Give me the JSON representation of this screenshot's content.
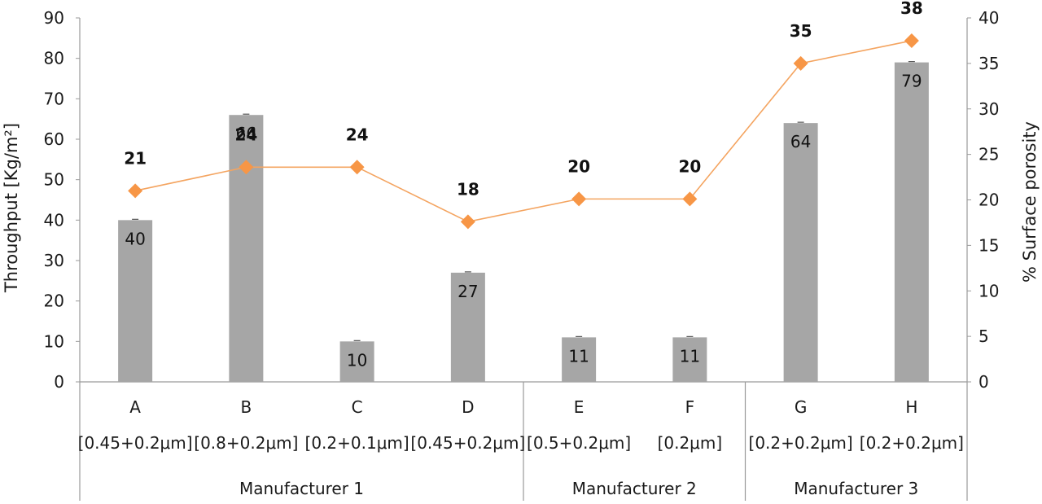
{
  "chart_data": {
    "type": "bar",
    "categories": [
      "A",
      "B",
      "C",
      "D",
      "E",
      "F",
      "G",
      "H"
    ],
    "subcategories": [
      "[0.45+0.2μm]",
      "[0.8+0.2μm]",
      "[0.2+0.1μm]",
      "[0.45+0.2μm]",
      "[0.5+0.2μm]",
      "[0.2μm]",
      "[0.2+0.2μm]",
      "[0.2+0.2μm]"
    ],
    "groups": [
      {
        "name": "Manufacturer 1",
        "categories": [
          "A",
          "B",
          "C",
          "D"
        ]
      },
      {
        "name": "Manufacturer 2",
        "categories": [
          "E",
          "F"
        ]
      },
      {
        "name": "Manufacturer 3",
        "categories": [
          "G",
          "H"
        ]
      }
    ],
    "series": [
      {
        "type": "bar",
        "axis": "left",
        "values": [
          40,
          66,
          10,
          27,
          11,
          11,
          64,
          79
        ],
        "color": "#a6a6a6",
        "labels": [
          "40",
          "66",
          "10",
          "27",
          "11",
          "11",
          "64",
          "79"
        ]
      },
      {
        "type": "line",
        "axis": "right",
        "values": [
          21,
          23.6,
          23.6,
          17.6,
          20.1,
          20.1,
          35,
          37.5
        ],
        "color": "#f4a460",
        "marker_color": "#f79646",
        "labels": [
          "21",
          "24",
          "24",
          "18",
          "20",
          "20",
          "35",
          "38"
        ]
      }
    ],
    "ylabel": "Throughput [Kg/m²]",
    "y2label": "% Surface porosity",
    "ylim": [
      0,
      90
    ],
    "y2lim": [
      0,
      40
    ],
    "yticks": [
      0,
      10,
      20,
      30,
      40,
      50,
      60,
      70,
      80,
      90
    ],
    "y2ticks": [
      0,
      5,
      10,
      15,
      20,
      25,
      30,
      35,
      40
    ],
    "grid": false
  }
}
